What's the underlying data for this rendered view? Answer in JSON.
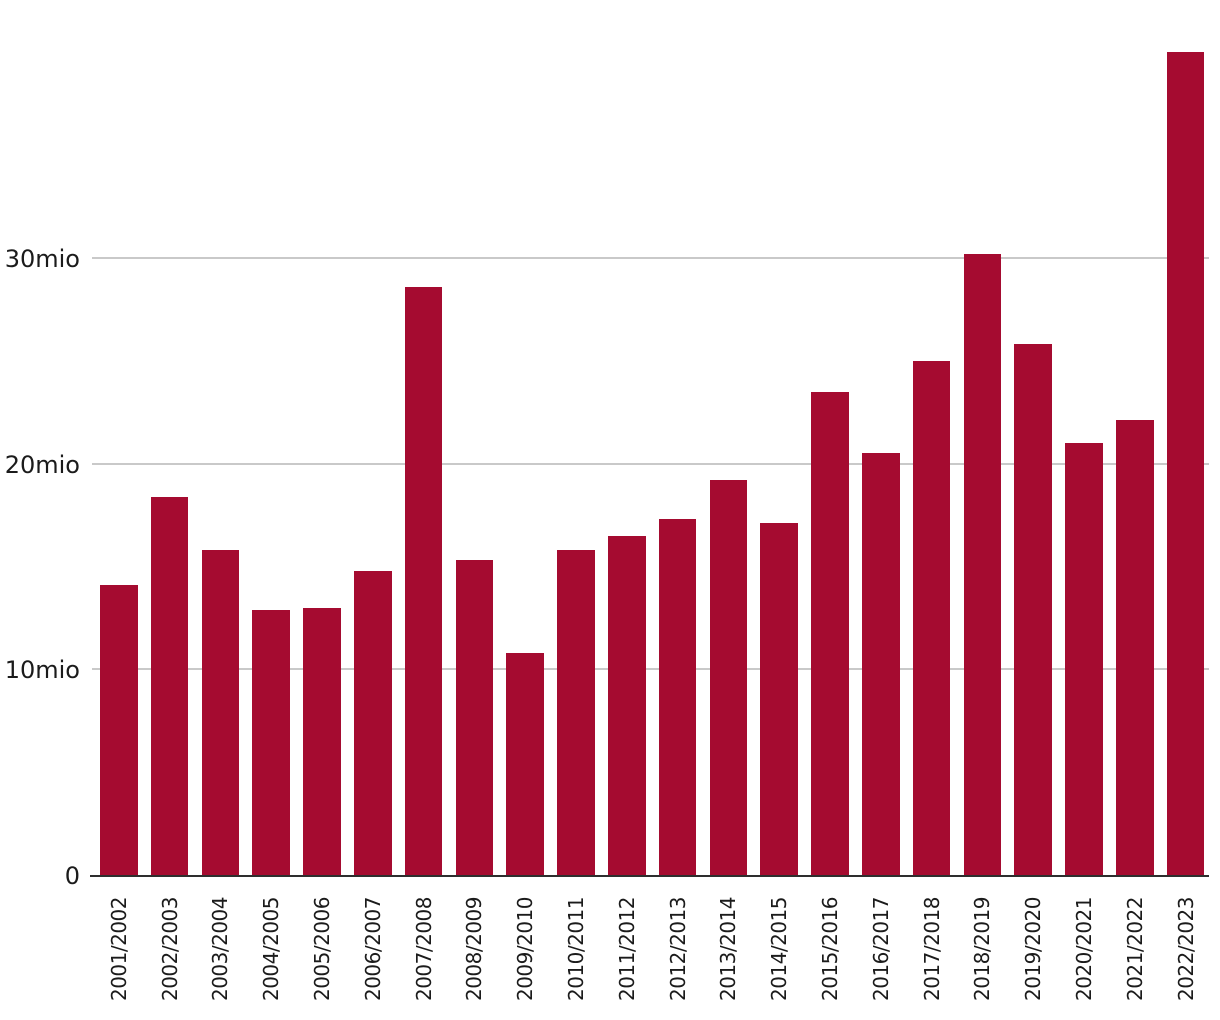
{
  "chart_data": {
    "type": "bar",
    "title": "",
    "xlabel": "",
    "ylabel": "",
    "unit": "mio",
    "categories": [
      "2001/2002",
      "2002/2003",
      "2003/2004",
      "2004/2005",
      "2005/2006",
      "2006/2007",
      "2007/2008",
      "2008/2009",
      "2009/2010",
      "2010/2011",
      "2011/2012",
      "2012/2013",
      "2013/2014",
      "2014/2015",
      "2015/2016",
      "2016/2017",
      "2017/2018",
      "2018/2019",
      "2019/2020",
      "2020/2021",
      "2021/2022",
      "2022/2023"
    ],
    "values": [
      14.1,
      18.4,
      15.8,
      12.9,
      13.0,
      14.8,
      28.6,
      15.3,
      10.8,
      15.8,
      16.5,
      17.3,
      19.2,
      17.1,
      23.5,
      20.5,
      25.0,
      30.2,
      25.8,
      21.0,
      22.1,
      40.0
    ],
    "ylim": [
      0,
      41
    ],
    "yticks": [
      {
        "value": 0,
        "label": "0"
      },
      {
        "value": 10,
        "label": "10mio"
      },
      {
        "value": 20,
        "label": "20mio"
      },
      {
        "value": 30,
        "label": "30mio"
      }
    ],
    "grid": "horizontal",
    "legend_position": "none",
    "colors": {
      "bar": "#a50b30",
      "gridline": "#c9c9c9",
      "axis_line": "#2e2e2e",
      "text": "#1b1b1b",
      "background": "#ffffff"
    }
  }
}
